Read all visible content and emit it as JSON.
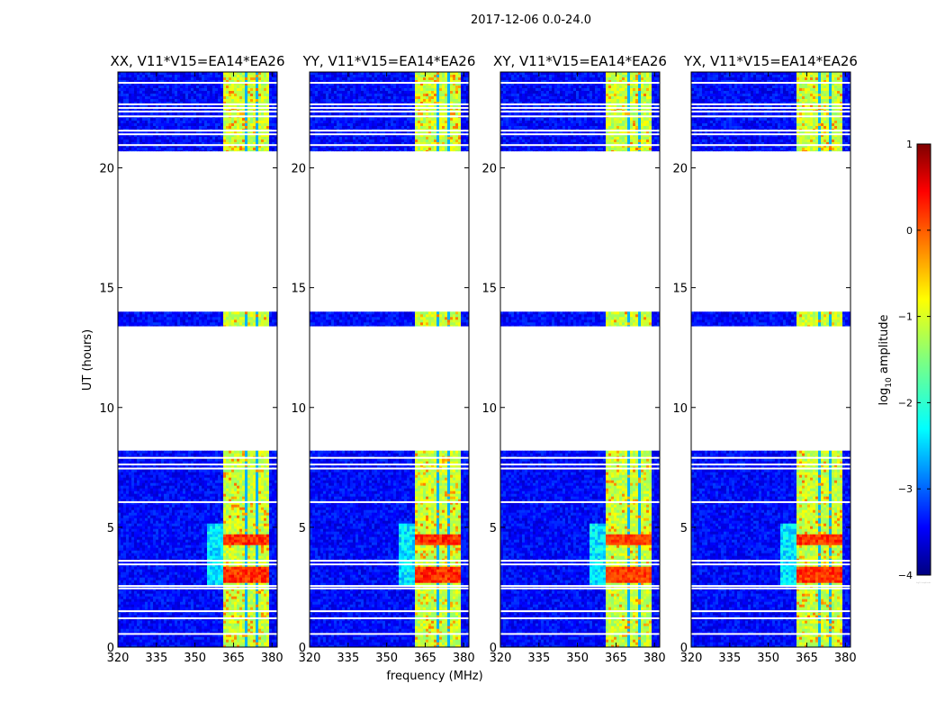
{
  "figure": {
    "suptitle": "2017-12-06 0.0-24.0"
  },
  "chart_data": {
    "type": "heatmap",
    "ylabel": "UT (hours)",
    "xlabel": "frequency (MHz)",
    "xlim": [
      320,
      382
    ],
    "ylim": [
      0,
      24
    ],
    "xticks": [
      320,
      335,
      350,
      365,
      380
    ],
    "yticks": [
      0,
      5,
      10,
      15,
      20
    ],
    "panels": [
      {
        "title": "XX, V11*V15=EA14*EA26",
        "hot_factor": 1.0
      },
      {
        "title": "YY, V11*V15=EA14*EA26",
        "hot_factor": 1.05
      },
      {
        "title": "XY, V11*V15=EA14*EA26",
        "hot_factor": 0.75
      },
      {
        "title": "YX, V11*V15=EA14*EA26",
        "hot_factor": 0.95
      }
    ],
    "data_ranges_hours": [
      [
        0,
        8.2
      ],
      [
        13.4,
        14.0
      ],
      [
        20.7,
        24.0
      ]
    ],
    "gap_lines_hours": [
      0.55,
      1.2,
      1.5,
      2.45,
      2.55,
      3.45,
      3.6,
      6.05,
      7.45,
      7.62,
      7.9,
      20.95,
      21.4,
      21.55,
      22.15,
      22.35,
      22.5,
      22.65,
      23.55
    ],
    "band_freq_mhz": [
      360.5,
      378.5
    ],
    "colorbar": {
      "label": "log10 amplitude",
      "range": [
        -4,
        1
      ],
      "ticks": [
        1,
        0,
        -1,
        -2,
        -3,
        -4
      ],
      "tick_labels": [
        "1",
        "0",
        "−1",
        "−2",
        "−3",
        "−4"
      ]
    }
  }
}
